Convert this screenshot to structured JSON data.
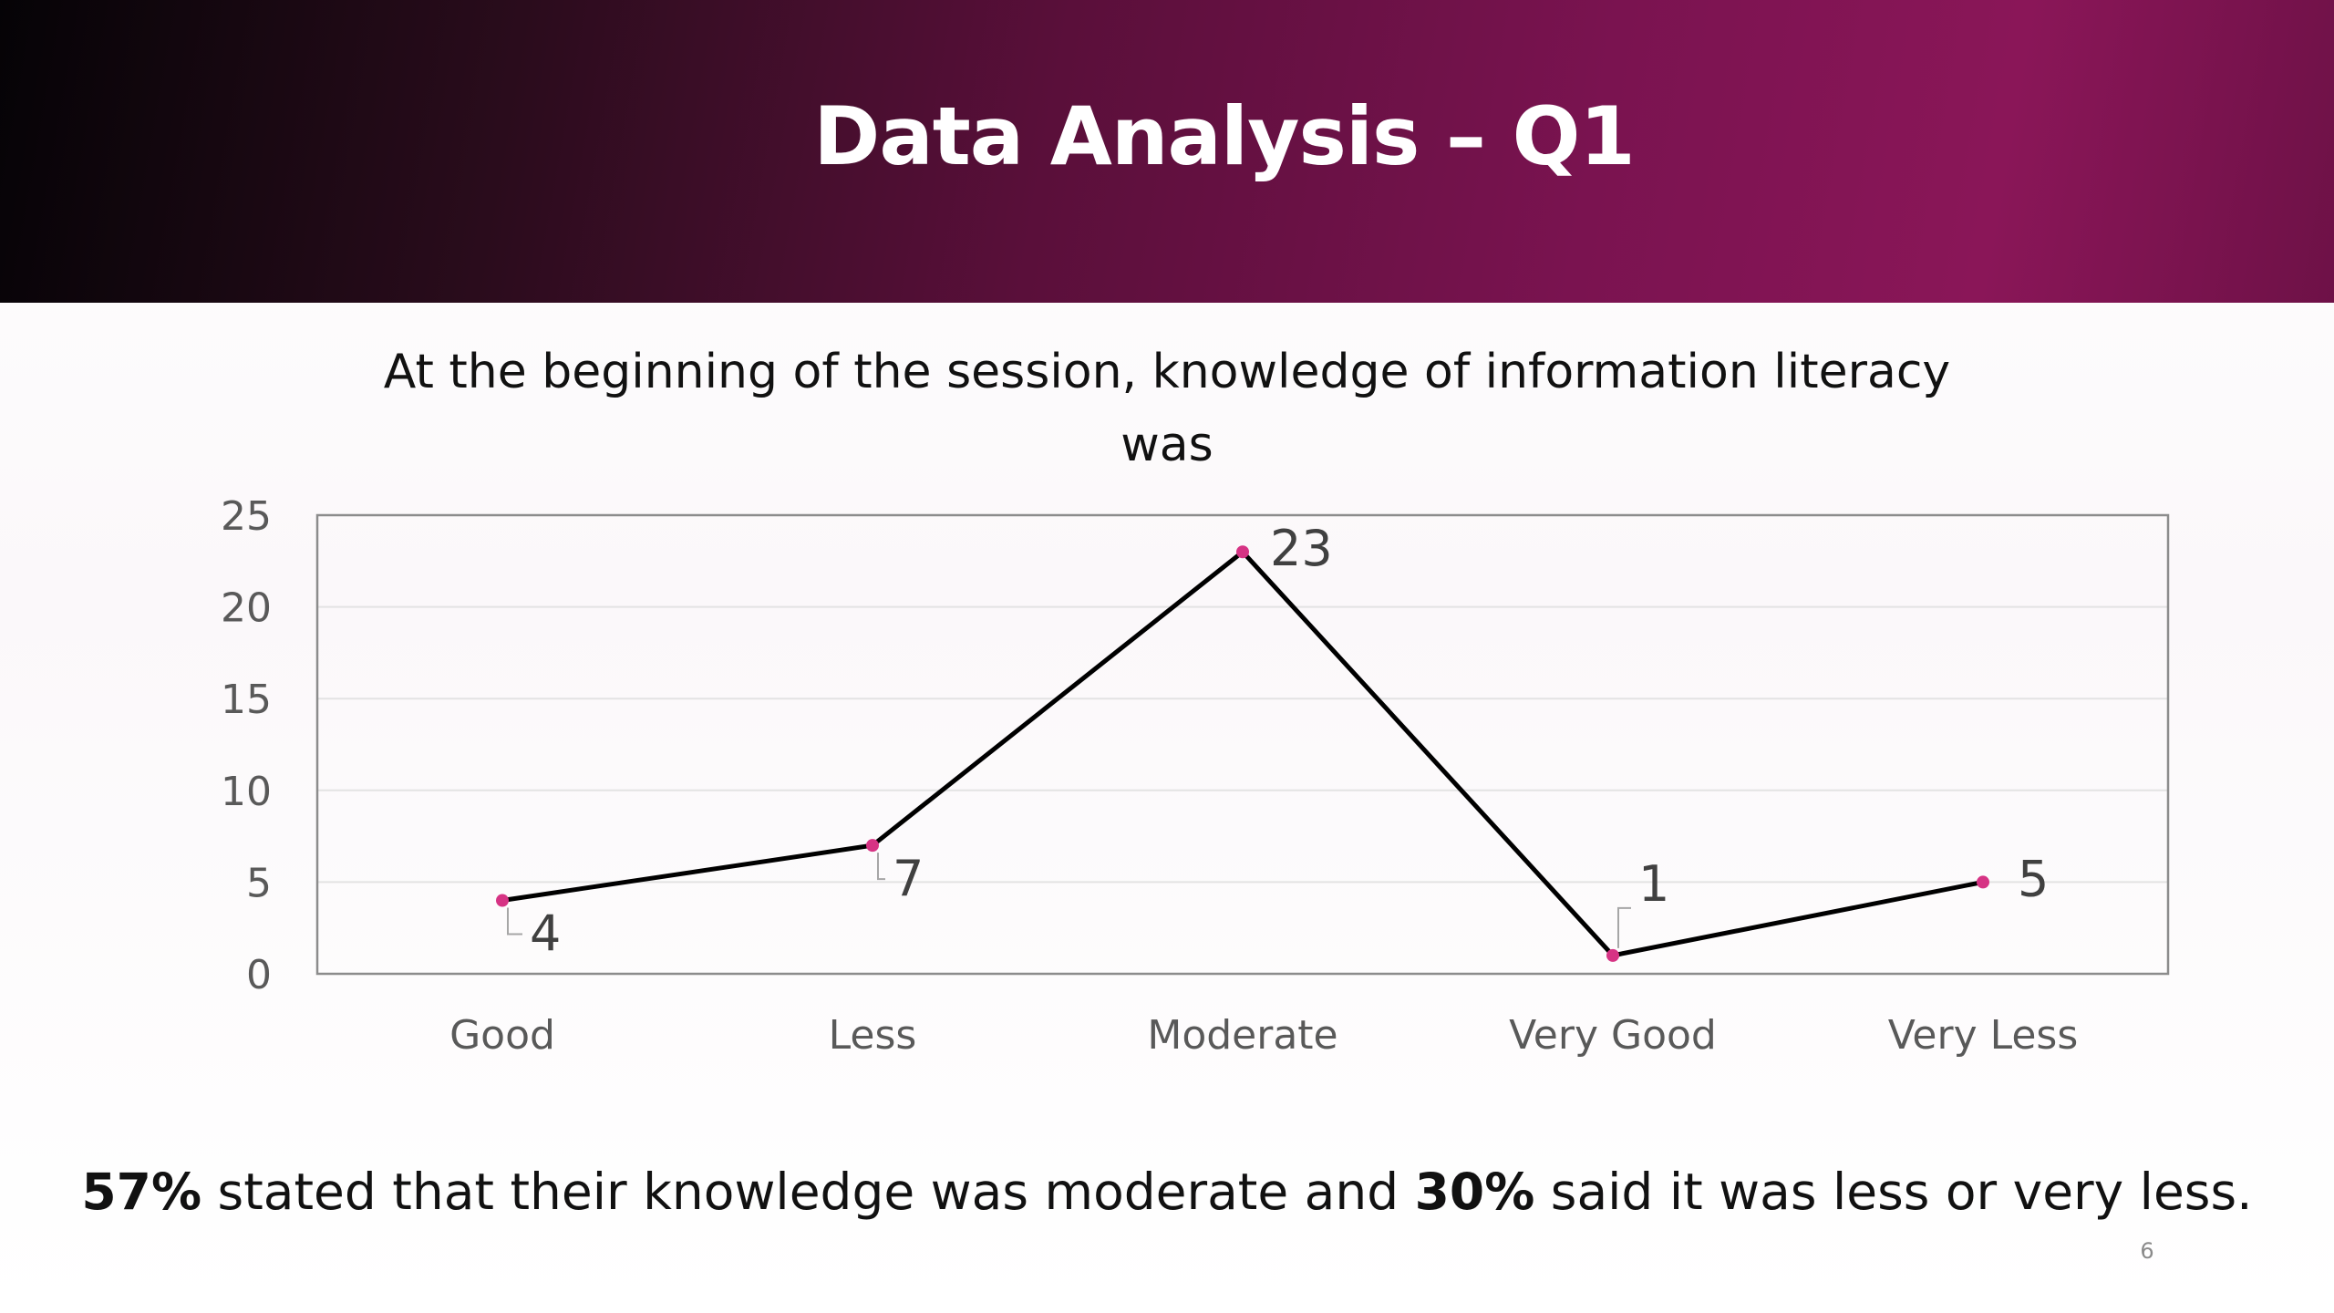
{
  "slide": {
    "title": "Data Analysis – Q1",
    "page_number": "6",
    "summary": {
      "part1_bold": "57%",
      "part2": " stated that their knowledge was moderate and ",
      "part3_bold": "30%",
      "part4": " said it was less or very less."
    }
  },
  "colors": {
    "header_gradient": [
      "#050306",
      "#7a1350"
    ],
    "line": "#000000",
    "marker": "#d63384",
    "axis_text": "#595959",
    "grid": "#e3e3e3"
  },
  "chart_data": {
    "type": "line",
    "title": "At the beginning of the session, knowledge of information literacy was",
    "title_lines": [
      "At the beginning of the session, knowledge of information literacy",
      "was"
    ],
    "categories": [
      "Good",
      "Less",
      "Moderate",
      "Very Good",
      "Very Less"
    ],
    "series": [
      {
        "values": [
          4,
          7,
          23,
          1,
          5
        ]
      }
    ],
    "data_labels": [
      "4",
      "7",
      "23",
      "1",
      "5"
    ],
    "yticks": [
      "0",
      "5",
      "10",
      "15",
      "20",
      "25"
    ],
    "ylim": [
      0,
      25
    ],
    "xlabel": "",
    "ylabel": "",
    "grid": true,
    "legend": "none"
  }
}
